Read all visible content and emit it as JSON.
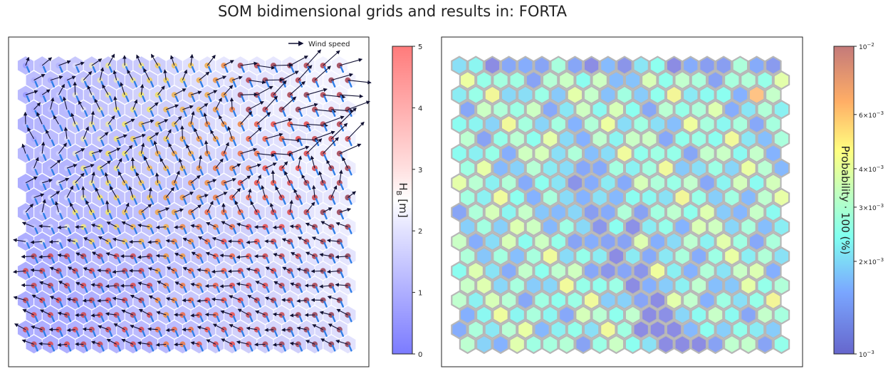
{
  "title": "SOM bidimensional grids and results in: FORTA",
  "chart_data": [
    {
      "type": "heatmap",
      "grid": {
        "shape": "hexagonal",
        "rows": 20,
        "cols": 20
      },
      "legend": {
        "label": "Wind speed",
        "placement": "top-right"
      },
      "colorbar": {
        "label": "H",
        "label_sub": "B",
        "label_unit": " [m]",
        "range": [
          0,
          5
        ],
        "ticks": [
          "0",
          "1",
          "2",
          "3",
          "4",
          "5"
        ],
        "colormap": "bwr"
      },
      "xlabel": "",
      "ylabel": ""
    },
    {
      "type": "heatmap",
      "grid": {
        "shape": "hexagonal",
        "rows": 20,
        "cols": 20
      },
      "colorbar": {
        "label": "Probability · 100 (%)",
        "scale": "log",
        "range": [
          0.001,
          0.01
        ],
        "ticks": [
          {
            "base": "10",
            "exp": "−3"
          },
          {
            "mant": "2×",
            "base": "10",
            "exp": "−3"
          },
          {
            "mant": "3×",
            "base": "10",
            "exp": "−3"
          },
          {
            "mant": "4×",
            "base": "10",
            "exp": "−3"
          },
          {
            "mant": "6×",
            "base": "10",
            "exp": "−3"
          },
          {
            "base": "10",
            "exp": "−2"
          }
        ],
        "colormap": "jet"
      },
      "xlabel": "",
      "ylabel": ""
    }
  ]
}
